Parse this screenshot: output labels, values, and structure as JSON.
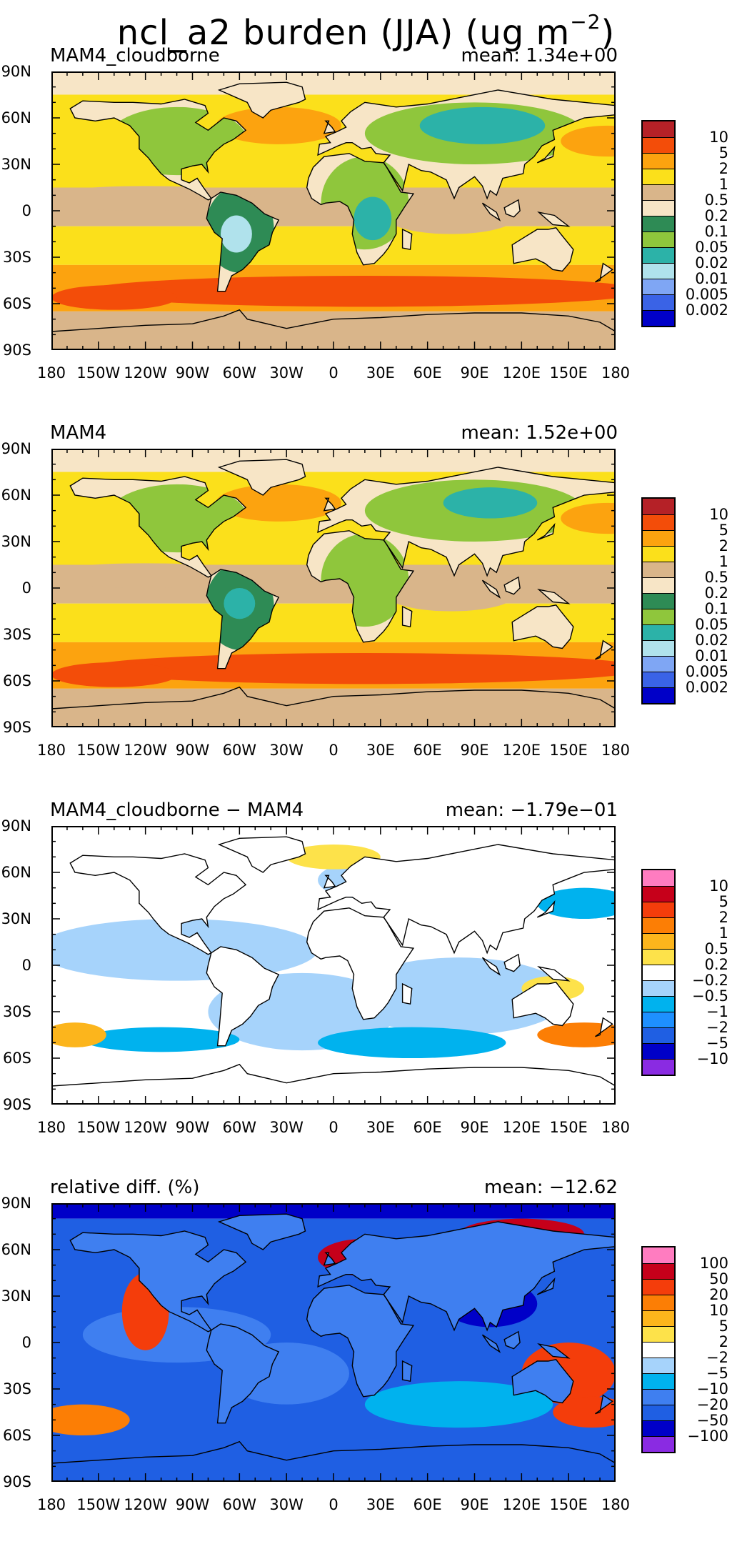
{
  "figure_title": {
    "base": "ncl_a2 burden (JJA) (ug m",
    "sup": "−2",
    "tail": ")"
  },
  "lat_labels": [
    "90N",
    "60N",
    "30N",
    "0",
    "30S",
    "60S",
    "90S"
  ],
  "lon_labels": [
    "180",
    "150W",
    "120W",
    "90W",
    "60W",
    "30W",
    "0",
    "30E",
    "60E",
    "90E",
    "120E",
    "150E",
    "180"
  ],
  "colors": {
    "abs": [
      "#0000c8",
      "#3a63e6",
      "#7fa6f4",
      "#b0e2ec",
      "#2cb2a8",
      "#8fc63c",
      "#2e8b55",
      "#f7e5c6",
      "#d9b58a",
      "#fbe01b",
      "#fca30f",
      "#f34d09",
      "#b52127"
    ],
    "diff": [
      "#8a2be2",
      "#0000c8",
      "#1f5fe3",
      "#1e90ff",
      "#00b2ee",
      "#a6d3fb",
      "#ffffff",
      "#fde24a",
      "#fcb51c",
      "#fc7e05",
      "#f43d0b",
      "#c6001a",
      "#ff7cc0"
    ],
    "rel": [
      "#8a2be2",
      "#0000c8",
      "#1f5fe3",
      "#3f7ff0",
      "#00b2ee",
      "#a6d3fb",
      "#ffffff",
      "#fde24a",
      "#fcb51c",
      "#fc7e05",
      "#f43d0b",
      "#c6001a",
      "#ff7cc0"
    ]
  },
  "panels": [
    {
      "id": "cloudborne",
      "title": "MAM4_cloudborne",
      "mean": "mean: 1.34e+00",
      "palette": "abs",
      "contour_levels": [
        "0.002",
        "0.005",
        "0.01",
        "0.02",
        "0.05",
        "0.1",
        "0.2",
        "0.5",
        "1",
        "2",
        "5",
        "10"
      ]
    },
    {
      "id": "mam4",
      "title": "MAM4",
      "mean": "mean: 1.52e+00",
      "palette": "abs",
      "contour_levels": [
        "0.002",
        "0.005",
        "0.01",
        "0.02",
        "0.05",
        "0.1",
        "0.2",
        "0.5",
        "1",
        "2",
        "5",
        "10"
      ]
    },
    {
      "id": "diff",
      "title": "MAM4_cloudborne − MAM4",
      "mean": "mean: −1.79e−01",
      "palette": "diff",
      "contour_levels": [
        "−10",
        "−5",
        "−2",
        "−1",
        "−0.5",
        "−0.2",
        "0.2",
        "0.5",
        "1",
        "2",
        "5",
        "10"
      ]
    },
    {
      "id": "reldiff",
      "title": "relative diff. (%)",
      "mean": "mean: −12.62",
      "palette": "rel",
      "contour_levels": [
        "−100",
        "−50",
        "−20",
        "−10",
        "−5",
        "−2",
        "2",
        "5",
        "10",
        "20",
        "50",
        "100"
      ]
    }
  ]
}
